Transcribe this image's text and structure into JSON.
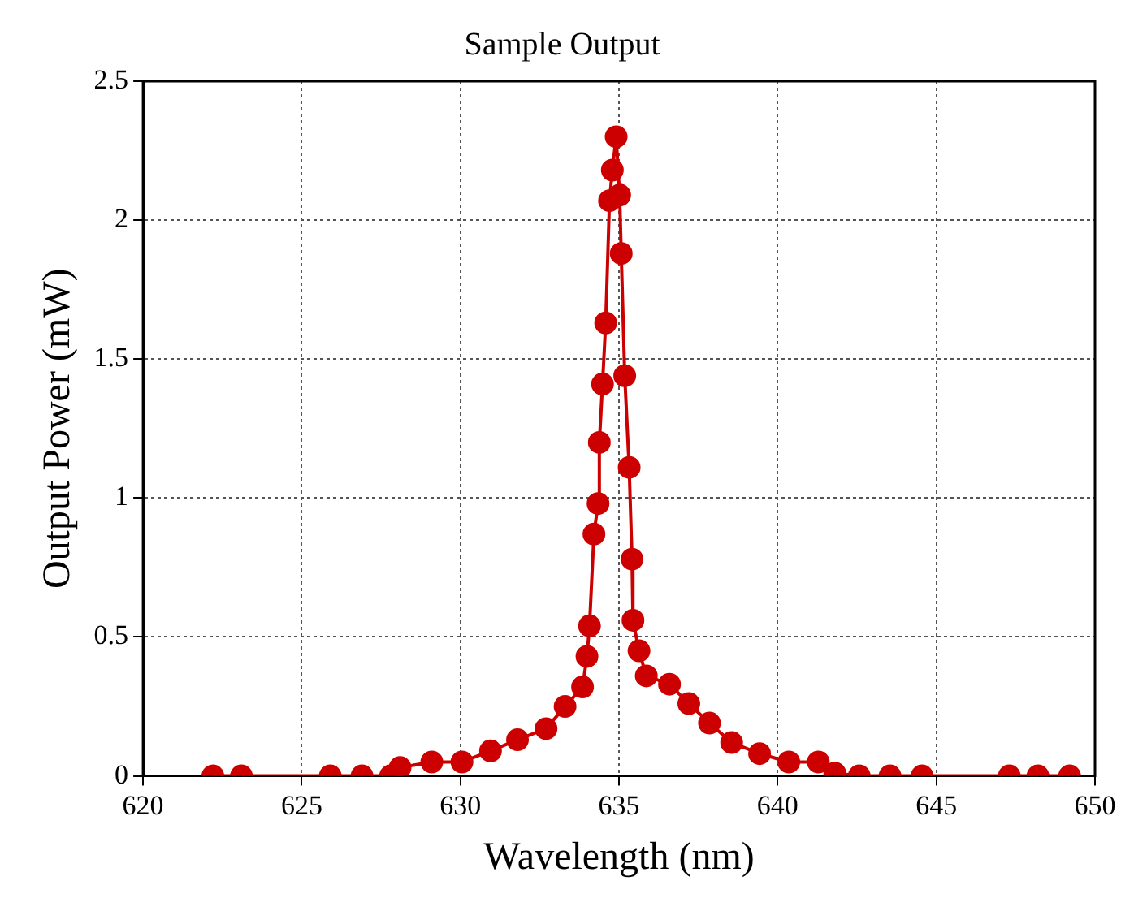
{
  "chart_data": {
    "type": "line",
    "title": "Sample Output",
    "xlabel": "Wavelength (nm)",
    "ylabel": "Output Power (mW)",
    "xlim": [
      620,
      650
    ],
    "xticks": [
      620,
      625,
      630,
      635,
      640,
      645,
      650
    ],
    "ylim": [
      0,
      2.5
    ],
    "yticks": [
      0,
      0.5,
      1,
      1.5,
      2,
      2.5
    ],
    "grid": true,
    "marker": "circle",
    "line_style": "solid",
    "legend": false,
    "series": [
      {
        "color": "#cc0000",
        "x": [
          622.2,
          623.1,
          625.9,
          626.9,
          627.8,
          628.1,
          629.1,
          630.05,
          630.95,
          631.8,
          632.7,
          633.3,
          633.85,
          633.99,
          634.07,
          634.21,
          634.34,
          634.38,
          634.48,
          634.58,
          634.7,
          634.79,
          634.91,
          635.02,
          635.07,
          635.18,
          635.32,
          635.41,
          635.44,
          635.63,
          635.86,
          636.59,
          637.2,
          637.85,
          638.55,
          639.43,
          640.35,
          641.28,
          641.8,
          642.57,
          643.54,
          644.55,
          647.3,
          648.2,
          649.2
        ],
        "values": [
          0,
          0,
          0,
          0,
          0,
          0.03,
          0.05,
          0.05,
          0.09,
          0.13,
          0.17,
          0.25,
          0.32,
          0.43,
          0.54,
          0.87,
          0.98,
          1.2,
          1.41,
          1.63,
          2.07,
          2.18,
          2.3,
          2.09,
          1.88,
          1.44,
          1.11,
          0.78,
          0.56,
          0.45,
          0.36,
          0.33,
          0.26,
          0.19,
          0.12,
          0.08,
          0.05,
          0.05,
          0.01,
          0,
          0,
          0,
          0,
          0,
          0
        ]
      }
    ]
  }
}
